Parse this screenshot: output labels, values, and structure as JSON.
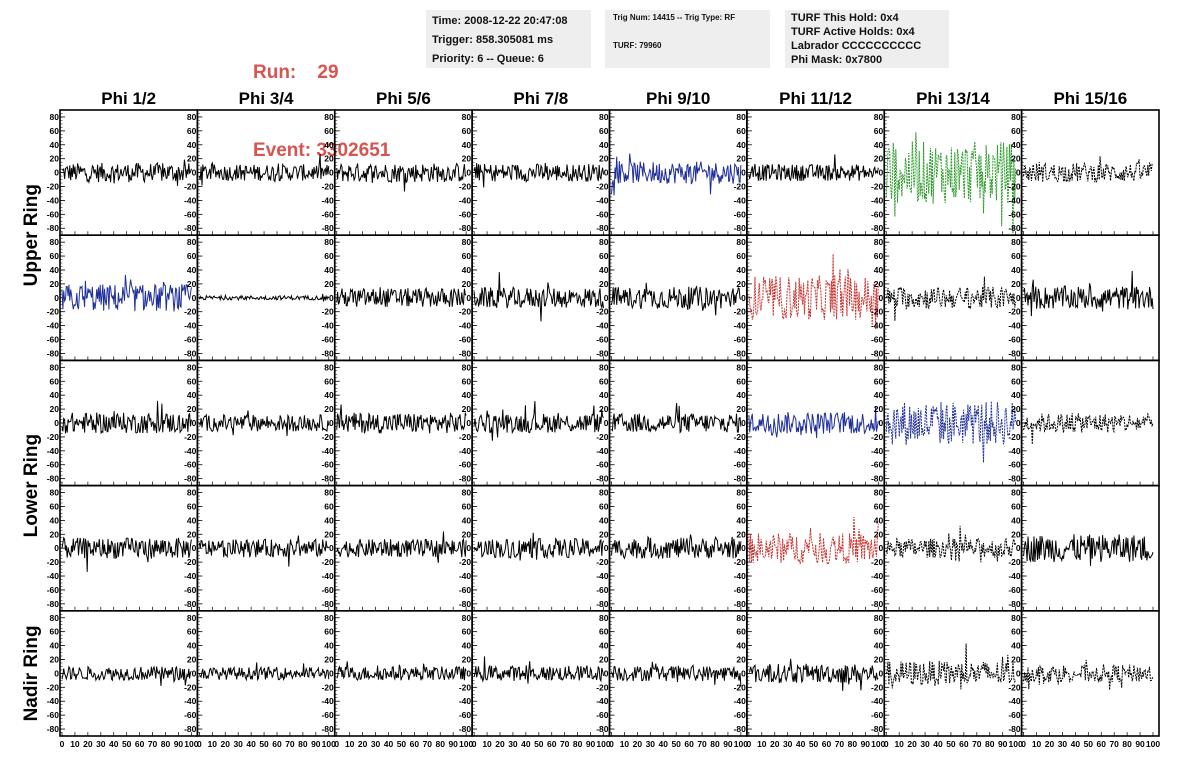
{
  "header": {
    "run_label": "Run:",
    "run_value": "29",
    "event_label": "Event:",
    "event_value": "3302651",
    "time": "Time: 2008-12-22 20:47:08",
    "trigger": "Trigger: 858.305081 ms",
    "priority": "Priority: 6 -- Queue: 6",
    "trig_num": "Trig Num: 14415 -- Trig Type: RF",
    "turf": "TURF: 79960",
    "turf_hold": "TURF This Hold: 0x4",
    "turf_active": "TURF Active Holds: 0x4",
    "labrador": "Labrador CCCCCCCCCC",
    "phi_mask": "Phi Mask: 0x7800"
  },
  "chart_data": {
    "type": "line",
    "columns": [
      "Phi 1/2",
      "Phi 3/4",
      "Phi 5/6",
      "Phi 7/8",
      "Phi 9/10",
      "Phi 11/12",
      "Phi 13/14",
      "Phi 15/16"
    ],
    "rows": [
      "Upper Ring",
      "Upper Ring",
      "Lower Ring",
      "Lower Ring",
      "Nadir Ring"
    ],
    "row_labels": [
      "Upper Ring",
      "Lower Ring",
      "Nadir Ring"
    ],
    "y_ticks": [
      80,
      60,
      40,
      20,
      0,
      -20,
      -40,
      -60,
      -80
    ],
    "y_range": [
      -90,
      90
    ],
    "x_ticks": [
      0,
      10,
      20,
      30,
      40,
      50,
      60,
      70,
      80,
      90,
      100
    ],
    "x_range": [
      0,
      100
    ],
    "colors": {
      "black": "#000000",
      "blue": "#1f2f9a",
      "red": "#c8322e",
      "green": "#2a9a2a"
    },
    "panels": [
      [
        {
          "c": "black",
          "a": 14,
          "d": false
        },
        {
          "c": "black",
          "a": 12,
          "d": false
        },
        {
          "c": "black",
          "a": 14,
          "d": false
        },
        {
          "c": "black",
          "a": 13,
          "d": false
        },
        {
          "c": "blue",
          "a": 16,
          "d": false
        },
        {
          "c": "black",
          "a": 12,
          "d": false
        },
        {
          "c": "green",
          "a": 45,
          "d": true
        },
        {
          "c": "black",
          "a": 14,
          "d": true
        }
      ],
      [
        {
          "c": "blue",
          "a": 20,
          "d": false
        },
        {
          "c": "black",
          "a": 3,
          "d": false
        },
        {
          "c": "black",
          "a": 14,
          "d": false
        },
        {
          "c": "black",
          "a": 15,
          "d": false
        },
        {
          "c": "black",
          "a": 16,
          "d": false
        },
        {
          "c": "red",
          "a": 32,
          "d": true
        },
        {
          "c": "black",
          "a": 16,
          "d": true
        },
        {
          "c": "black",
          "a": 17,
          "d": false
        }
      ],
      [
        {
          "c": "black",
          "a": 15,
          "d": false
        },
        {
          "c": "black",
          "a": 12,
          "d": false
        },
        {
          "c": "black",
          "a": 15,
          "d": false
        },
        {
          "c": "black",
          "a": 14,
          "d": false
        },
        {
          "c": "black",
          "a": 14,
          "d": false
        },
        {
          "c": "blue",
          "a": 16,
          "d": false
        },
        {
          "c": "blue",
          "a": 32,
          "d": true
        },
        {
          "c": "black",
          "a": 14,
          "d": true
        }
      ],
      [
        {
          "c": "black",
          "a": 15,
          "d": false
        },
        {
          "c": "black",
          "a": 13,
          "d": false
        },
        {
          "c": "black",
          "a": 13,
          "d": false
        },
        {
          "c": "black",
          "a": 14,
          "d": false
        },
        {
          "c": "black",
          "a": 15,
          "d": false
        },
        {
          "c": "red",
          "a": 22,
          "d": true
        },
        {
          "c": "black",
          "a": 14,
          "d": true
        },
        {
          "c": "black",
          "a": 20,
          "d": false
        }
      ],
      [
        {
          "c": "black",
          "a": 10,
          "d": false
        },
        {
          "c": "black",
          "a": 9,
          "d": false
        },
        {
          "c": "black",
          "a": 10,
          "d": false
        },
        {
          "c": "black",
          "a": 11,
          "d": false
        },
        {
          "c": "black",
          "a": 11,
          "d": false
        },
        {
          "c": "black",
          "a": 14,
          "d": false
        },
        {
          "c": "black",
          "a": 18,
          "d": true
        },
        {
          "c": "black",
          "a": 13,
          "d": true
        }
      ]
    ]
  }
}
